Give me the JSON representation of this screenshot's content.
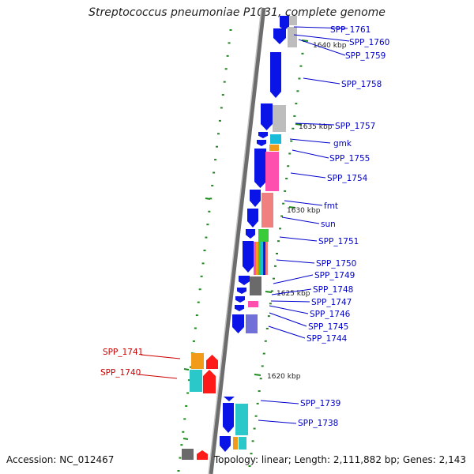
{
  "title": "Streptococcus pneumoniae P1031, complete genome",
  "accession": "Accession: NC_012467",
  "topology": "Topology: linear; Length: 2,111,882 bp; Genes: 2,143",
  "colors": {
    "blue": "#0a14e6",
    "lavender": "#7070d8",
    "gray": "#bdbdbd",
    "darkgray": "#6a6a6a",
    "cyan": "#18bcd8",
    "teal": "#2ac8c8",
    "orange": "#f29a1a",
    "pink": "#ff4fae",
    "salmon": "#f08080",
    "green": "#3acb3a",
    "red": "#ff1a1a",
    "tick": "#1f8a1f",
    "label_blue": "#0000cc",
    "label_red": "#cc0000"
  },
  "diagram": {
    "scale_labels": [
      {
        "id": "1640",
        "text": "1640 kbp"
      },
      {
        "id": "1635",
        "text": "1635 kbp"
      },
      {
        "id": "1630",
        "text": "1630 kbp"
      },
      {
        "id": "1625",
        "text": "1625 kbp"
      },
      {
        "id": "1620",
        "text": "1620 kbp"
      }
    ],
    "gene_labels": [
      {
        "id": "spp1761",
        "text": "SPP_1761",
        "strand": "forward"
      },
      {
        "id": "spp1760",
        "text": "SPP_1760",
        "strand": "forward"
      },
      {
        "id": "spp1759",
        "text": "SPP_1759",
        "strand": "forward"
      },
      {
        "id": "spp1758",
        "text": "SPP_1758",
        "strand": "forward"
      },
      {
        "id": "spp1757",
        "text": "SPP_1757",
        "strand": "forward"
      },
      {
        "id": "gmk",
        "text": "gmk",
        "strand": "forward"
      },
      {
        "id": "spp1755",
        "text": "SPP_1755",
        "strand": "forward"
      },
      {
        "id": "spp1754",
        "text": "SPP_1754",
        "strand": "forward"
      },
      {
        "id": "fmt",
        "text": "fmt",
        "strand": "forward"
      },
      {
        "id": "sun",
        "text": "sun",
        "strand": "forward"
      },
      {
        "id": "spp1751",
        "text": "SPP_1751",
        "strand": "forward"
      },
      {
        "id": "spp1750",
        "text": "SPP_1750",
        "strand": "forward"
      },
      {
        "id": "spp1749",
        "text": "SPP_1749",
        "strand": "forward"
      },
      {
        "id": "spp1748",
        "text": "SPP_1748",
        "strand": "forward"
      },
      {
        "id": "spp1747",
        "text": "SPP_1747",
        "strand": "forward"
      },
      {
        "id": "spp1746",
        "text": "SPP_1746",
        "strand": "forward"
      },
      {
        "id": "spp1745",
        "text": "SPP_1745",
        "strand": "forward"
      },
      {
        "id": "spp1744",
        "text": "SPP_1744",
        "strand": "forward"
      },
      {
        "id": "spp1741",
        "text": "SPP_1741",
        "strand": "reverse"
      },
      {
        "id": "spp1740",
        "text": "SPP_1740",
        "strand": "reverse"
      },
      {
        "id": "spp1739",
        "text": "SPP_1739",
        "strand": "forward"
      },
      {
        "id": "spp1738",
        "text": "SPP_1738",
        "strand": "forward"
      }
    ]
  }
}
